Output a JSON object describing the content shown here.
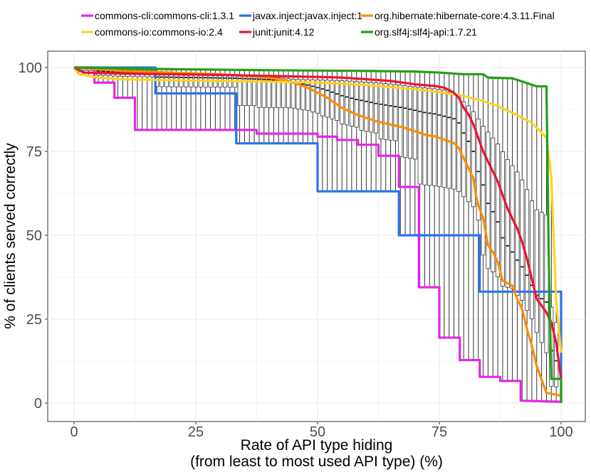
{
  "chart_data": {
    "type": "line",
    "subtype": "step lines with per-rate boxplots",
    "xlabel_line1": "Rate of API type hiding",
    "xlabel_line2": "(from least to most used API type) (%)",
    "ylabel": "% of clients served correctly",
    "xlim": [
      0,
      100
    ],
    "ylim": [
      0,
      100
    ],
    "x_ticks": [
      0,
      25,
      50,
      75,
      100
    ],
    "y_ticks": [
      0,
      25,
      50,
      75,
      100
    ],
    "grid": true,
    "legend_position": "top",
    "series": [
      {
        "name": "commons-cli:commons-cli:1.3.1",
        "color": "#e427e6",
        "points": [
          [
            0,
            100
          ],
          [
            4.2,
            100
          ],
          [
            4.2,
            95.5
          ],
          [
            8.3,
            95.5
          ],
          [
            8.3,
            91
          ],
          [
            12.5,
            91
          ],
          [
            12.5,
            81.4
          ],
          [
            37.5,
            81.4
          ],
          [
            37.5,
            80.3
          ],
          [
            50,
            80.3
          ],
          [
            50,
            79.4
          ],
          [
            54,
            79.4
          ],
          [
            54,
            78.4
          ],
          [
            58.3,
            78.4
          ],
          [
            58.3,
            77
          ],
          [
            62.5,
            77
          ],
          [
            62.5,
            73.7
          ],
          [
            66.7,
            73.7
          ],
          [
            66.7,
            64.4
          ],
          [
            70.8,
            64.4
          ],
          [
            70.8,
            34.5
          ],
          [
            75,
            34.5
          ],
          [
            75,
            19.5
          ],
          [
            79.2,
            19.5
          ],
          [
            79.2,
            12.8
          ],
          [
            83.3,
            12.8
          ],
          [
            83.3,
            7.8
          ],
          [
            87.5,
            7.8
          ],
          [
            87.5,
            6.6
          ],
          [
            91.7,
            6.6
          ],
          [
            91.7,
            0.7
          ],
          [
            100,
            0.4
          ]
        ]
      },
      {
        "name": "commons-io:commons-io:2.4",
        "color": "#ffd21f",
        "points": [
          [
            0,
            100
          ],
          [
            1,
            98
          ],
          [
            5,
            97
          ],
          [
            10,
            96.5
          ],
          [
            20,
            96.2
          ],
          [
            30,
            96
          ],
          [
            40,
            95.8
          ],
          [
            50,
            95.5
          ],
          [
            55,
            95.2
          ],
          [
            60,
            94.8
          ],
          [
            65,
            94.2
          ],
          [
            70,
            93.5
          ],
          [
            75,
            92.7
          ],
          [
            80,
            91.5
          ],
          [
            84,
            90
          ],
          [
            87,
            88.5
          ],
          [
            90,
            86.5
          ],
          [
            92,
            85
          ],
          [
            94,
            83.5
          ],
          [
            95,
            82
          ],
          [
            96,
            80.5
          ],
          [
            97,
            79
          ],
          [
            98,
            67
          ],
          [
            99,
            30
          ],
          [
            100,
            15
          ]
        ]
      },
      {
        "name": "javax.inject:javax.inject:1",
        "color": "#2a73e8",
        "points": [
          [
            0,
            100
          ],
          [
            16.7,
            100
          ],
          [
            16.7,
            92.3
          ],
          [
            33.3,
            92.3
          ],
          [
            33.3,
            77.4
          ],
          [
            50,
            77.4
          ],
          [
            50,
            63.1
          ],
          [
            66.7,
            63.1
          ],
          [
            66.7,
            50
          ],
          [
            83.3,
            50
          ],
          [
            83.3,
            33.2
          ],
          [
            100,
            33.2
          ],
          [
            100,
            0
          ]
        ]
      },
      {
        "name": "junit:junit:4.12",
        "color": "#ee1133",
        "points": [
          [
            0,
            100
          ],
          [
            2,
            98.5
          ],
          [
            10,
            98.2
          ],
          [
            20,
            98
          ],
          [
            30,
            97.8
          ],
          [
            40,
            97.5
          ],
          [
            50,
            97.2
          ],
          [
            55,
            97
          ],
          [
            60,
            96.5
          ],
          [
            65,
            96
          ],
          [
            70,
            95
          ],
          [
            74,
            94.5
          ],
          [
            76,
            94
          ],
          [
            78,
            92.5
          ],
          [
            79,
            91
          ],
          [
            80,
            88
          ],
          [
            81,
            86
          ],
          [
            82,
            83
          ],
          [
            83,
            79
          ],
          [
            84,
            75
          ],
          [
            85,
            72
          ],
          [
            86,
            69
          ],
          [
            87,
            66
          ],
          [
            88,
            62
          ],
          [
            89,
            58
          ],
          [
            90,
            55
          ],
          [
            91,
            52
          ],
          [
            92,
            48
          ],
          [
            93,
            43
          ],
          [
            94,
            37
          ],
          [
            95,
            31
          ],
          [
            96,
            29
          ],
          [
            97,
            27
          ],
          [
            98,
            24
          ],
          [
            99,
            18
          ],
          [
            100,
            7
          ]
        ]
      },
      {
        "name": "org.hibernate:hibernate-core:4.3.11.Final",
        "color": "#ff8c00",
        "points": [
          [
            0,
            100
          ],
          [
            10,
            99
          ],
          [
            20,
            98.5
          ],
          [
            30,
            98
          ],
          [
            40,
            97
          ],
          [
            42,
            96.5
          ],
          [
            44,
            96
          ],
          [
            46,
            95
          ],
          [
            48,
            94
          ],
          [
            50,
            92.5
          ],
          [
            52,
            91
          ],
          [
            55,
            88
          ],
          [
            58,
            86
          ],
          [
            60,
            85
          ],
          [
            62,
            84
          ],
          [
            65,
            83
          ],
          [
            68,
            82
          ],
          [
            70,
            81
          ],
          [
            72,
            80
          ],
          [
            74,
            79.5
          ],
          [
            76,
            78.5
          ],
          [
            78,
            77.5
          ],
          [
            79,
            76
          ],
          [
            80,
            73
          ],
          [
            81,
            70
          ],
          [
            82,
            67
          ],
          [
            82.5,
            62
          ],
          [
            83,
            59
          ],
          [
            84,
            55
          ],
          [
            85,
            47
          ],
          [
            86,
            45
          ],
          [
            87,
            42
          ],
          [
            88,
            36.5
          ],
          [
            90,
            35
          ],
          [
            91,
            31
          ],
          [
            92,
            28
          ],
          [
            93,
            22
          ],
          [
            94,
            17
          ],
          [
            95,
            11
          ],
          [
            96,
            7
          ],
          [
            97,
            3
          ],
          [
            99,
            2.5
          ],
          [
            100,
            2.2
          ]
        ]
      },
      {
        "name": "org.slf4j:slf4j-api:1.7.21",
        "color": "#22a016",
        "points": [
          [
            0,
            100
          ],
          [
            20,
            99.5
          ],
          [
            40,
            99.2
          ],
          [
            60,
            99
          ],
          [
            70,
            98.8
          ],
          [
            75,
            98.5
          ],
          [
            80,
            98
          ],
          [
            84,
            98
          ],
          [
            85,
            97
          ],
          [
            90,
            96.8
          ],
          [
            95,
            94.4
          ],
          [
            97,
            94.4
          ],
          [
            97.5,
            40
          ],
          [
            98,
            7.2
          ],
          [
            100,
            7.2
          ],
          [
            100,
            0
          ]
        ]
      }
    ]
  }
}
